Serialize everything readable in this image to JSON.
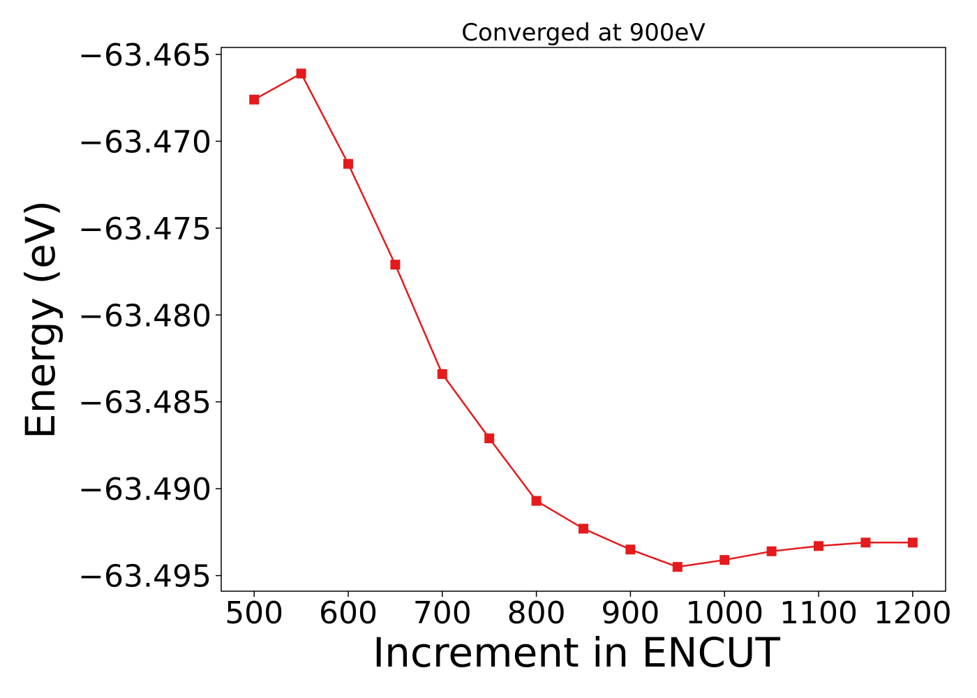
{
  "chart_data": {
    "type": "line",
    "title": "Converged at 900eV",
    "xlabel": "Increment in ENCUT",
    "ylabel": "Energy (eV)",
    "xlim": [
      465,
      1235
    ],
    "ylim": [
      -63.4959,
      -63.4646
    ],
    "x_ticks": [
      500,
      600,
      700,
      800,
      900,
      1000,
      1100,
      1200
    ],
    "y_ticks": [
      -63.465,
      -63.47,
      -63.475,
      -63.48,
      -63.485,
      -63.49,
      -63.495
    ],
    "y_tick_labels": [
      "−63.465",
      "−63.470",
      "−63.475",
      "−63.480",
      "−63.485",
      "−63.490",
      "−63.495"
    ],
    "grid": false,
    "legend": false,
    "series": [
      {
        "color": "#e41a1c",
        "marker": "square",
        "x": [
          500,
          550,
          600,
          650,
          700,
          750,
          800,
          850,
          900,
          950,
          1000,
          1050,
          1100,
          1150,
          1200
        ],
        "y": [
          -63.4676,
          -63.4661,
          -63.4713,
          -63.4771,
          -63.4834,
          -63.4871,
          -63.4907,
          -63.4923,
          -63.4935,
          -63.4945,
          -63.4941,
          -63.4936,
          -63.4933,
          -63.4931,
          -63.4931
        ]
      }
    ]
  }
}
